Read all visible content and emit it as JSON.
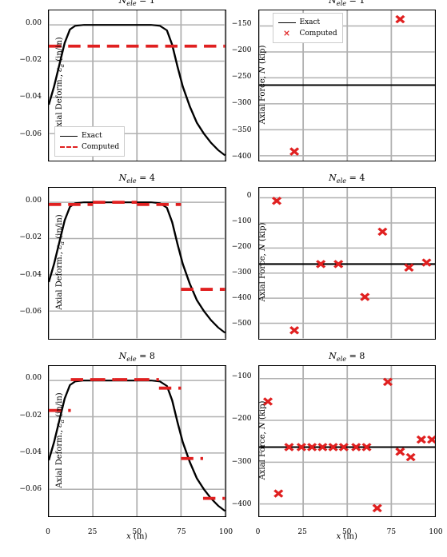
{
  "figure_bg": "#ffffff",
  "grid_color": "#b0b0b0",
  "exact_color": "#000000",
  "computed_color": "#e02020",
  "titles": [
    "1",
    "4",
    "8"
  ],
  "x": {
    "min": 0,
    "max": 100,
    "ticks": [
      0,
      25,
      50,
      75,
      100
    ],
    "label_html": "<span class='ital'>x</span> (in)"
  },
  "left_col": {
    "ylabel_html": "Axial Deform., <span class='ital'>ε</span><span class='sub'>a</span> (in/in)",
    "ylim": [
      -0.075,
      0.008
    ],
    "yticks": [
      0.0,
      -0.02,
      -0.04,
      -0.06
    ],
    "ytick_labels": [
      "0.00",
      "−0.02",
      "−0.04",
      "−0.06"
    ],
    "exact_curve": [
      [
        0,
        -0.044
      ],
      [
        3,
        -0.034
      ],
      [
        6,
        -0.022
      ],
      [
        9,
        -0.01
      ],
      [
        12,
        -0.0025
      ],
      [
        15,
        -0.0005
      ],
      [
        20,
        0
      ],
      [
        30,
        0
      ],
      [
        40,
        0
      ],
      [
        50,
        0
      ],
      [
        58,
        0
      ],
      [
        63,
        -0.0005
      ],
      [
        67,
        -0.003
      ],
      [
        70,
        -0.011
      ],
      [
        73,
        -0.023
      ],
      [
        76,
        -0.034
      ],
      [
        80,
        -0.045
      ],
      [
        84,
        -0.054
      ],
      [
        88,
        -0.06
      ],
      [
        92,
        -0.065
      ],
      [
        96,
        -0.069
      ],
      [
        100,
        -0.072
      ]
    ],
    "computed_segments": {
      "n1": [
        [
          0,
          100,
          -0.0117
        ]
      ],
      "n4": [
        [
          0,
          25,
          -0.0012
        ],
        [
          25,
          50,
          0.0
        ],
        [
          50,
          75,
          -0.0012
        ],
        [
          75,
          100,
          -0.048
        ]
      ],
      "n8": [
        [
          0,
          12.5,
          -0.0165
        ],
        [
          12.5,
          25,
          0.0005
        ],
        [
          25,
          37.5,
          0.0005
        ],
        [
          37.5,
          50,
          0.0005
        ],
        [
          50,
          62.5,
          0.0005
        ],
        [
          62.5,
          75,
          -0.0042
        ],
        [
          75,
          87.5,
          -0.043
        ],
        [
          87.5,
          100,
          -0.065
        ]
      ]
    }
  },
  "right_col": {
    "ylabel_html": "Axial Force, <span class='ital'>N</span> (kip)",
    "rows": [
      {
        "ylim": [
          -410,
          -120
        ],
        "yticks": [
          -150,
          -200,
          -250,
          -300,
          -350,
          -400
        ],
        "ytick_labels": [
          "−150",
          "−200",
          "−250",
          "−300",
          "−350",
          "−400"
        ],
        "exact_y": -264,
        "legend": true,
        "points": [
          [
            20,
            -392
          ],
          [
            80,
            -137
          ]
        ]
      },
      {
        "ylim": [
          -560,
          40
        ],
        "yticks": [
          0,
          -100,
          -200,
          -300,
          -400,
          -500
        ],
        "ytick_labels": [
          "0",
          "−100",
          "−200",
          "−300",
          "−400",
          "−500"
        ],
        "exact_y": -264,
        "legend": false,
        "points": [
          [
            10,
            -12
          ],
          [
            20,
            -528
          ],
          [
            35,
            -264
          ],
          [
            45,
            -264
          ],
          [
            60,
            -395
          ],
          [
            70,
            -135
          ],
          [
            85,
            -278
          ],
          [
            95,
            -258
          ]
        ]
      },
      {
        "ylim": [
          -430,
          -70
        ],
        "yticks": [
          -100,
          -200,
          -300,
          -400
        ],
        "ytick_labels": [
          "−100",
          "−200",
          "−300",
          "−400"
        ],
        "exact_y": -264,
        "legend": false,
        "points": [
          [
            5,
            -155
          ],
          [
            11,
            -375
          ],
          [
            17,
            -264
          ],
          [
            24,
            -264
          ],
          [
            30,
            -264
          ],
          [
            36,
            -264
          ],
          [
            42,
            -264
          ],
          [
            48,
            -264
          ],
          [
            55,
            -264
          ],
          [
            61,
            -264
          ],
          [
            67,
            -410
          ],
          [
            73,
            -108
          ],
          [
            80,
            -275
          ],
          [
            86,
            -288
          ],
          [
            92,
            -246
          ],
          [
            98,
            -246
          ]
        ]
      }
    ]
  }
}
